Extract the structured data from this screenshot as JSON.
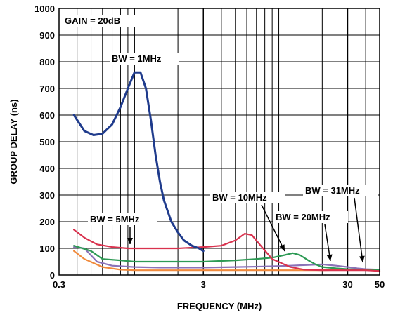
{
  "chart_data": {
    "type": "line",
    "title": "",
    "xlabel": "FREQUENCY (MHz)",
    "ylabel": "GROUP DELAY (ns)",
    "x_scale": "log",
    "xlim": [
      0.3,
      50
    ],
    "ylim": [
      0,
      1000
    ],
    "x_tick_labels": [
      "0.3",
      "3",
      "30",
      "50"
    ],
    "y_tick_labels": [
      "0",
      "100",
      "200",
      "300",
      "400",
      "500",
      "600",
      "700",
      "800",
      "900",
      "1000"
    ],
    "grid": true,
    "gain_label": "GAIN = 20dB",
    "colors": {
      "bw1": "#1f3b8c",
      "bw5": "#d9324e",
      "bw10": "#2e9a55",
      "bw20": "#8b72b8",
      "bw31": "#f08a3c"
    },
    "series": [
      {
        "name": "BW = 1MHz",
        "color_key": "bw1",
        "x": [
          0.38,
          0.45,
          0.52,
          0.6,
          0.7,
          0.8,
          0.9,
          1.0,
          1.1,
          1.2,
          1.3,
          1.4,
          1.5,
          1.6,
          1.8,
          2.0,
          2.2,
          2.5,
          2.8,
          3.0
        ],
        "y": [
          600,
          540,
          525,
          530,
          565,
          630,
          700,
          760,
          760,
          700,
          580,
          450,
          350,
          280,
          200,
          160,
          130,
          110,
          100,
          90
        ]
      },
      {
        "name": "BW = 5MHz",
        "color_key": "bw5",
        "x": [
          0.38,
          0.45,
          0.55,
          0.7,
          0.9,
          1.2,
          1.5,
          2.0,
          3.0,
          4.0,
          5.0,
          5.8,
          6.5,
          7.5,
          9.0,
          12.0,
          15.0,
          20.0,
          30.0,
          40.0,
          50.0
        ],
        "y": [
          170,
          140,
          115,
          105,
          100,
          100,
          100,
          100,
          105,
          110,
          130,
          155,
          150,
          110,
          60,
          30,
          20,
          18,
          18,
          18,
          15
        ]
      },
      {
        "name": "BW = 10MHz",
        "color_key": "bw10",
        "x": [
          0.38,
          0.5,
          0.6,
          0.8,
          1.0,
          1.5,
          2.0,
          3.0,
          5.0,
          7.0,
          9.0,
          11.0,
          12.5,
          14.0,
          16.0,
          18.0,
          20.0,
          25.0,
          30.0,
          40.0,
          50.0
        ],
        "y": [
          110,
          90,
          60,
          55,
          50,
          50,
          50,
          50,
          55,
          60,
          65,
          75,
          82,
          75,
          55,
          40,
          30,
          25,
          22,
          20,
          18
        ]
      },
      {
        "name": "BW = 20MHz",
        "color_key": "bw20",
        "x": [
          0.38,
          0.45,
          0.55,
          0.7,
          1.0,
          1.5,
          2.0,
          3.0,
          5.0,
          8.0,
          12.0,
          16.0,
          20.0,
          22.0,
          25.0,
          30.0,
          35.0,
          40.0,
          50.0
        ],
        "y": [
          105,
          100,
          50,
          35,
          30,
          28,
          28,
          28,
          30,
          32,
          35,
          38,
          40,
          38,
          35,
          30,
          25,
          22,
          20
        ]
      },
      {
        "name": "BW = 31MHz",
        "color_key": "bw31",
        "x": [
          0.38,
          0.45,
          0.6,
          0.8,
          1.0,
          1.5,
          2.0,
          3.0,
          5.0,
          8.0,
          12.0,
          20.0,
          30.0,
          40.0,
          50.0
        ],
        "y": [
          90,
          60,
          30,
          20,
          18,
          18,
          18,
          18,
          18,
          18,
          18,
          18,
          20,
          20,
          15
        ]
      }
    ],
    "annotations": [
      {
        "text": "BW = 1MHz",
        "series": "BW = 1MHz"
      },
      {
        "text": "BW = 5MHz",
        "series": "BW = 5MHz"
      },
      {
        "text": "BW = 10MHz",
        "series": "BW = 10MHz"
      },
      {
        "text": "BW = 20MHz",
        "series": "BW = 20MHz"
      },
      {
        "text": "BW = 31MHz",
        "series": "BW = 31MHz"
      }
    ]
  }
}
